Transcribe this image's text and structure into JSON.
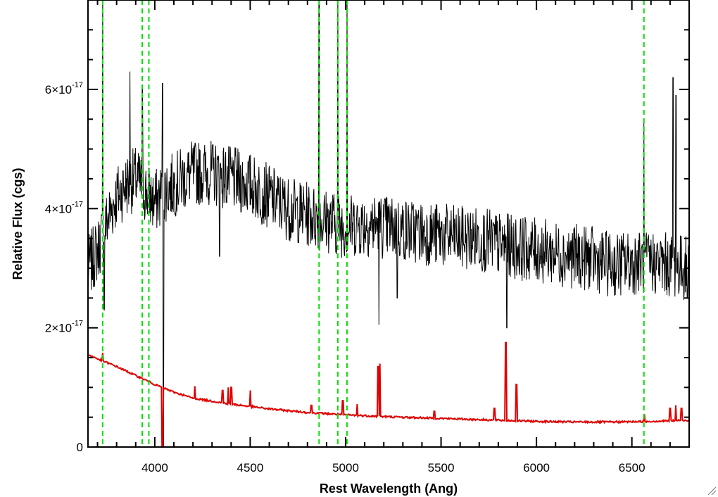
{
  "chart_data": {
    "type": "line",
    "xlabel": "Rest Wavelength (Ang)",
    "ylabel": "Relative Flux (cgs)",
    "xlim": [
      3650,
      6800
    ],
    "ylim": [
      0,
      7.5e-17
    ],
    "x_ticks": [
      4000,
      4500,
      5000,
      5500,
      6000,
      6500
    ],
    "y_ticks": [
      {
        "value": 0,
        "mantissa": "0",
        "exponent": ""
      },
      {
        "value": 2e-17,
        "mantissa": "2×10",
        "exponent": "-17"
      },
      {
        "value": 4e-17,
        "mantissa": "4×10",
        "exponent": "-17"
      },
      {
        "value": 6e-17,
        "mantissa": "6×10",
        "exponent": "-17"
      }
    ],
    "series": [
      {
        "color": "#000000",
        "style": "noisy spectrum",
        "x": [
          3650,
          3700,
          3750,
          3800,
          3850,
          3900,
          3950,
          4000,
          4050,
          4100,
          4200,
          4300,
          4400,
          4500,
          4600,
          4700,
          4800,
          4900,
          5000,
          5100,
          5200,
          5300,
          5400,
          5500,
          5600,
          5700,
          5800,
          5900,
          6000,
          6100,
          6200,
          6300,
          6400,
          6500,
          6600,
          6700,
          6800
        ],
        "y": [
          3e-17,
          3.3e-17,
          3.8e-17,
          4.2e-17,
          4.4e-17,
          4.5e-17,
          4.3e-17,
          4.1e-17,
          4.3e-17,
          4.4e-17,
          4.6e-17,
          4.6e-17,
          4.5e-17,
          4.4e-17,
          4.2e-17,
          4e-17,
          3.9e-17,
          3.8e-17,
          3.7e-17,
          3.75e-17,
          3.7e-17,
          3.65e-17,
          3.6e-17,
          3.55e-17,
          3.5e-17,
          3.5e-17,
          3.4e-17,
          3.35e-17,
          3.3e-17,
          3.25e-17,
          3.2e-17,
          3.15e-17,
          3.05e-17,
          3.1e-17,
          3.1e-17,
          3.05e-17,
          3e-17
        ]
      },
      {
        "color": "#e00000",
        "style": "smooth continuum",
        "x": [
          3650,
          3700,
          3800,
          3900,
          4000,
          4100,
          4200,
          4400,
          4600,
          4800,
          5000,
          5200,
          5400,
          5600,
          5800,
          6000,
          6200,
          6400,
          6600,
          6800
        ],
        "y": [
          1.55e-17,
          1.48e-17,
          1.35e-17,
          1.2e-17,
          1.05e-17,
          9.2e-18,
          8.2e-18,
          7.2e-18,
          6.4e-18,
          5.8e-18,
          5.4e-18,
          5.1e-18,
          4.9e-18,
          4.7e-18,
          4.5e-18,
          4.3e-18,
          4.2e-18,
          4.2e-18,
          4.3e-18,
          4.5e-18
        ]
      }
    ],
    "red_features": [
      {
        "x": 3727,
        "y": 1.58e-17
      },
      {
        "x": 4038,
        "y": 1.4e-17
      },
      {
        "x": 4040,
        "y": -2e-18
      },
      {
        "x": 4210,
        "y": 1.02e-17
      },
      {
        "x": 4355,
        "y": 9.5e-18
      },
      {
        "x": 4385,
        "y": 1e-17
      },
      {
        "x": 4400,
        "y": 1e-17
      },
      {
        "x": 4500,
        "y": 9.5e-18
      },
      {
        "x": 4820,
        "y": 7e-18
      },
      {
        "x": 4985,
        "y": 7.8e-18
      },
      {
        "x": 5060,
        "y": 7.2e-18
      },
      {
        "x": 5170,
        "y": 1.35e-17
      },
      {
        "x": 5180,
        "y": 1.4e-17
      },
      {
        "x": 5465,
        "y": 6e-18
      },
      {
        "x": 5780,
        "y": 6.5e-18
      },
      {
        "x": 5840,
        "y": 1.75e-17
      },
      {
        "x": 5895,
        "y": 1.05e-17
      },
      {
        "x": 6565,
        "y": 5.5e-18
      },
      {
        "x": 6700,
        "y": 6.5e-18
      },
      {
        "x": 6730,
        "y": 7e-18
      },
      {
        "x": 6760,
        "y": 6.5e-18
      }
    ],
    "black_features": [
      {
        "x": 3727,
        "y": 8e-17
      },
      {
        "x": 3735,
        "y": 2.3e-17
      },
      {
        "x": 3870,
        "y": 6.3e-17
      },
      {
        "x": 3935,
        "y": 6e-17
      },
      {
        "x": 4040,
        "y": 6.1e-17
      },
      {
        "x": 4045,
        "y": 0.0
      },
      {
        "x": 4340,
        "y": 3.2e-17
      },
      {
        "x": 4861,
        "y": 8e-17
      },
      {
        "x": 4959,
        "y": 8e-17
      },
      {
        "x": 5007,
        "y": 8e-17
      },
      {
        "x": 5175,
        "y": 2.05e-17
      },
      {
        "x": 5270,
        "y": 2.5e-17
      },
      {
        "x": 5845,
        "y": 2e-17
      },
      {
        "x": 6563,
        "y": 5.5e-17
      },
      {
        "x": 6716,
        "y": 6.2e-17
      },
      {
        "x": 6731,
        "y": 5.9e-17
      },
      {
        "x": 6790,
        "y": 2.5e-17
      }
    ],
    "vertical_lines": {
      "color": "#00e000",
      "style": "dashed",
      "x": [
        3727,
        3934,
        3969,
        4861,
        4959,
        5007,
        6563
      ]
    }
  },
  "ui": {
    "resize_grip_icon": "resize-grip-icon"
  }
}
